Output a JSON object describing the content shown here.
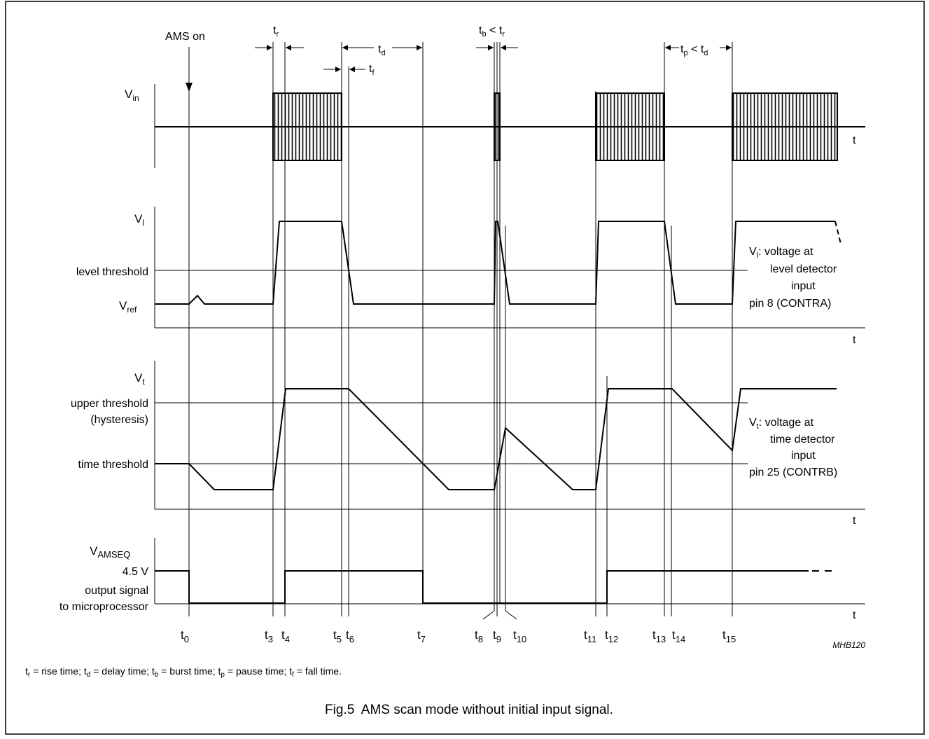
{
  "figure": {
    "id": "MHB120",
    "caption": "Fig.5  AMS scan mode without initial input signal.",
    "legend": {
      "tr": [
        "t",
        "r",
        " = rise time; "
      ],
      "td": [
        "t",
        "d",
        " = delay time; "
      ],
      "tb": [
        "t",
        "b",
        " = burst time; "
      ],
      "tp": [
        "t",
        "p",
        " = pause time; "
      ],
      "tf": [
        "t",
        "f",
        " = fall time."
      ]
    }
  },
  "top_annotations": {
    "ams_on": "AMS on",
    "tr": {
      "main": "t",
      "sub": "r"
    },
    "td": {
      "main": "t",
      "sub": "d"
    },
    "tf": {
      "main": "t",
      "sub": "f"
    },
    "tb_lt_tr": {
      "a": "t",
      "a_sub": "b",
      "op": " < ",
      "b": "t",
      "b_sub": "r"
    },
    "tp_lt_td": {
      "a": "t",
      "a_sub": "p",
      "op": " < ",
      "b": "t",
      "b_sub": "d"
    }
  },
  "panels": {
    "vin": {
      "label_main": "V",
      "label_sub": "in",
      "axis": "t"
    },
    "vl": {
      "label_main": "V",
      "label_sub": "l",
      "level_threshold": "level threshold",
      "vref_main": "V",
      "vref_sub": "ref",
      "axis": "t",
      "note": {
        "prefix_main": "V",
        "prefix_sub": "l",
        "line1": ": voltage at",
        "line2": "level detector",
        "line3": "input",
        "line4": "pin 8 (CONTRA)"
      }
    },
    "vt": {
      "label_main": "V",
      "label_sub": "t",
      "upper_threshold": "upper threshold",
      "hysteresis": "(hysteresis)",
      "time_threshold": "time threshold",
      "axis": "t",
      "note": {
        "prefix_main": "V",
        "prefix_sub": "t",
        "line1": ": voltage at",
        "line2": "time detector",
        "line3": "input",
        "line4": "pin 25 (CONTRB)"
      }
    },
    "vamseq": {
      "label_main": "V",
      "label_sub": "AMSEQ",
      "level": "4.5 V",
      "output1": "output signal",
      "output2": "to microprocessor",
      "axis": "t"
    }
  },
  "time_markers": [
    {
      "main": "t",
      "sub": "0"
    },
    {
      "main": "t",
      "sub": "3"
    },
    {
      "main": "t",
      "sub": "4"
    },
    {
      "main": "t",
      "sub": "5"
    },
    {
      "main": "t",
      "sub": "6"
    },
    {
      "main": "t",
      "sub": "7"
    },
    {
      "main": "t",
      "sub": "8"
    },
    {
      "main": "t",
      "sub": "9"
    },
    {
      "main": "t",
      "sub": "10"
    },
    {
      "main": "t",
      "sub": "11"
    },
    {
      "main": "t",
      "sub": "12"
    },
    {
      "main": "t",
      "sub": "13"
    },
    {
      "main": "t",
      "sub": "14"
    },
    {
      "main": "t",
      "sub": "15"
    }
  ]
}
